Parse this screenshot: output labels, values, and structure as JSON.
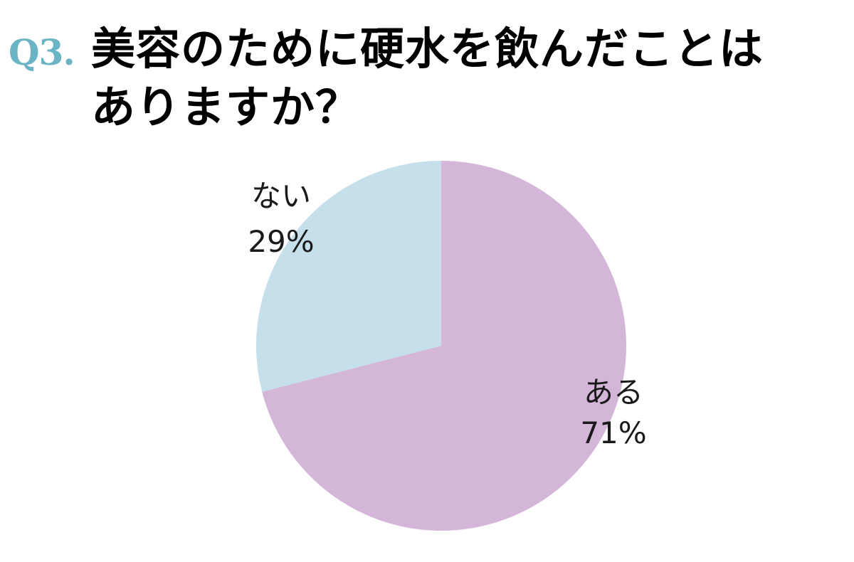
{
  "question": {
    "number": "Q3.",
    "title_line1": "美容のために硬水を飲んだことは",
    "title_line2": "ありますか？"
  },
  "chart_data": {
    "type": "pie",
    "slices": [
      {
        "label": "ある",
        "value": 71,
        "value_text": "71%",
        "color": "#d3b6d8"
      },
      {
        "label": "ない",
        "value": 29,
        "value_text": "29%",
        "color": "#c5e0eb"
      }
    ],
    "start_angle": "12 o'clock",
    "direction": "clockwise",
    "legend": "none"
  }
}
